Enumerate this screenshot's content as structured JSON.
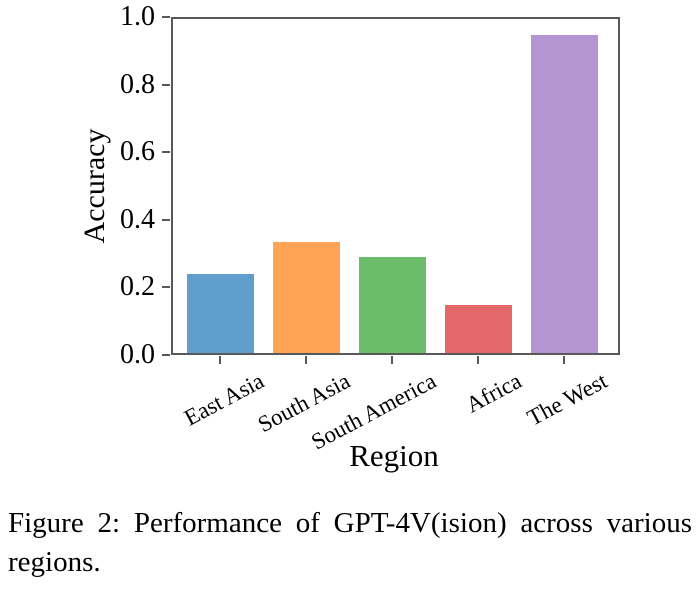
{
  "figure": {
    "caption_line1": "Figure 2: Performance of GPT-4V(ision) across various",
    "caption_line2": "regions."
  },
  "chart_data": {
    "type": "bar",
    "title": "",
    "xlabel": "Region",
    "ylabel": "Accuracy",
    "categories": [
      "East Asia",
      "South Asia",
      "South America",
      "Africa",
      "The West"
    ],
    "values": [
      0.238,
      0.333,
      0.286,
      0.143,
      0.952
    ],
    "bar_colors": [
      "#5F9ECD",
      "#FFA454",
      "#6BBC6B",
      "#E26869",
      "#B495D1"
    ],
    "ylim": [
      0.0,
      1.0
    ],
    "ytick_labels": [
      "0.0",
      "0.2",
      "0.4",
      "0.6",
      "0.8",
      "1.0"
    ],
    "grid": false,
    "legend_position": "none",
    "spine_box": true,
    "xtick_rotation_deg": 28
  }
}
